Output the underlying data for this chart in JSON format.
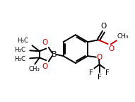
{
  "background_color": "#ffffff",
  "line_color": "#000000",
  "red_color": "#cc0000",
  "bond_lw": 1.4,
  "figsize": [
    1.91,
    1.44
  ],
  "dpi": 100,
  "xlim": [
    0,
    10
  ],
  "ylim": [
    0,
    7.5
  ]
}
